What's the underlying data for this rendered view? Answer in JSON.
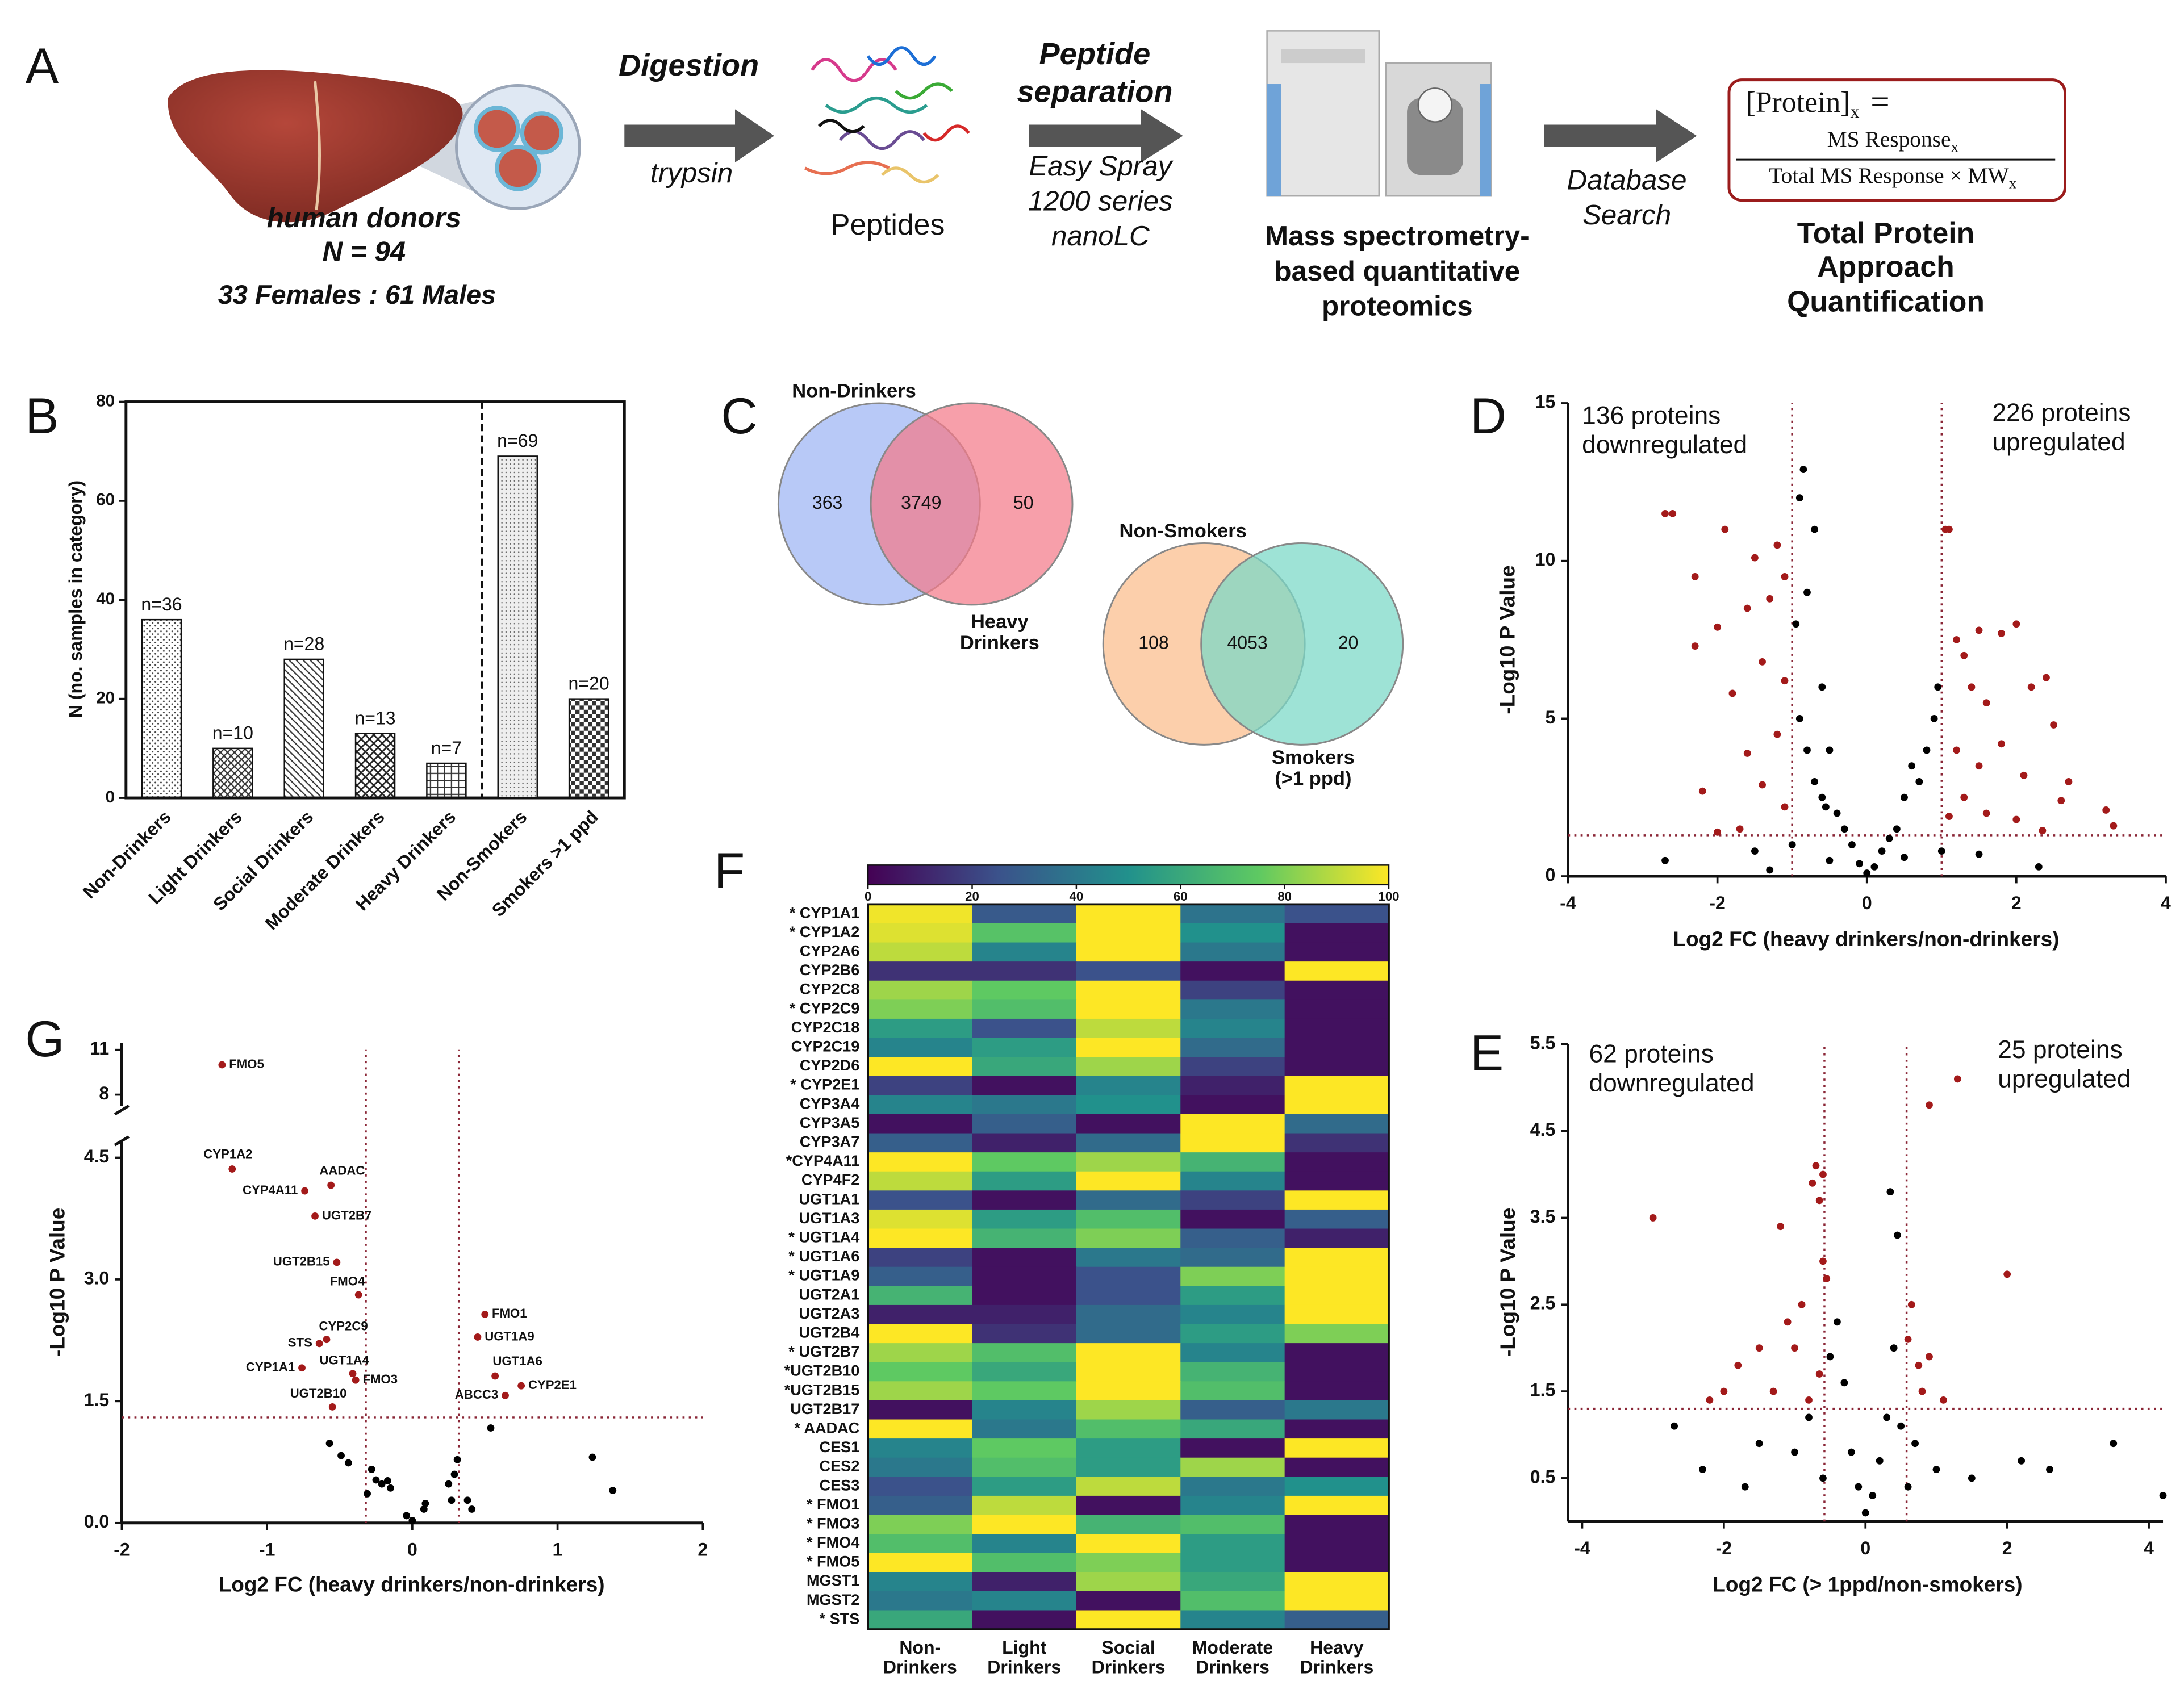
{
  "workflow": {
    "label": "A",
    "donors": [
      "human donors",
      "N = 94"
    ],
    "sexes": "33 Females : 61 Males",
    "step1": {
      "title": "Digestion",
      "note": "trypsin"
    },
    "product": "Peptides",
    "step2": {
      "title": [
        "Peptide",
        "separation"
      ],
      "note": [
        "Easy Spray",
        "1200 series",
        "nanoLC"
      ]
    },
    "instrument": [
      "Mass spectrometry-",
      "based quantitative",
      "proteomics"
    ],
    "step3": [
      "Database",
      "Search"
    ],
    "formula": {
      "lhs": "[Protein]",
      "lhs_sub": "x",
      "equals": "=",
      "numerator": "MS Response",
      "numerator_sub": "x",
      "denominator": "Total MS Response × MW",
      "denominator_sub": "x"
    },
    "result": [
      "Total Protein",
      "Approach",
      "Quantification"
    ]
  },
  "chart_data": [
    {
      "type": "bar",
      "label": "B",
      "y_label": "N (no. samples in category)",
      "categories": [
        "Non-Drinkers",
        "Light Drinkers",
        "Social Drinkers",
        "Moderate Drinkers",
        "Heavy Drinkers",
        "Non-Smokers",
        "Smokers >1 ppd"
      ],
      "values": [
        36,
        10,
        28,
        13,
        7,
        69,
        20
      ],
      "value_labels": [
        "n=36",
        "n=10",
        "n=28",
        "n=13",
        "n=7",
        "n=69",
        "n=20"
      ],
      "ylim": [
        0,
        80
      ],
      "yticks": [
        0,
        20,
        40,
        60,
        80
      ]
    },
    {
      "type": "venn",
      "label": "C",
      "diagrams": [
        {
          "sets": [
            {
              "name": [
                "Non-Drinkers"
              ],
              "color": "#9db4f4"
            },
            {
              "name": [
                "Heavy",
                "Drinkers"
              ],
              "color": "#f47a89"
            }
          ],
          "values": [
            363,
            3749,
            50
          ]
        },
        {
          "sets": [
            {
              "name": [
                "Non-Smokers"
              ],
              "color": "#fbbd8a"
            },
            {
              "name": [
                "Smokers",
                "(>1 ppd)"
              ],
              "color": "#78d8c6"
            }
          ],
          "values": [
            108,
            4053,
            20
          ]
        }
      ]
    },
    {
      "type": "scatter",
      "label": "D",
      "x_label": "Log2 FC (heavy drinkers/non-drinkers)",
      "y_label": "-Log10 P Value",
      "xlim": [
        -4,
        4
      ],
      "ylim": [
        0,
        15
      ],
      "xticks": [
        -4,
        -2,
        0,
        2,
        4
      ],
      "yticks": [
        0,
        5,
        10,
        15
      ],
      "vlines": [
        -1,
        1
      ],
      "hlines": [
        1.3
      ],
      "line_color": "#8a2636",
      "annotations": [
        [
          "136 proteins",
          "downregulated"
        ],
        [
          "226 proteins",
          "upregulated"
        ]
      ],
      "series": [
        {
          "color": "#000000",
          "x": [
            -0.85,
            -0.9,
            -0.7,
            -0.8,
            -0.95,
            -0.6,
            -0.9,
            -0.5,
            -0.7,
            -0.4,
            -0.2,
            -0.1,
            0,
            0.1,
            0.2,
            0.4,
            0.5,
            0.7,
            0.8,
            0.9,
            0.95,
            0.6,
            0.3,
            -0.3,
            -0.6,
            -0.8,
            -0.5,
            0.5,
            -1.0,
            1.0,
            -1.5,
            1.5,
            -2.7,
            2.3,
            -0.55,
            -1.3
          ],
          "values": [
            12.9,
            12,
            11,
            9,
            8,
            6,
            5,
            4,
            3,
            2,
            1,
            0.4,
            0.1,
            0.3,
            0.8,
            1.5,
            2.5,
            3,
            4,
            5,
            6,
            3.5,
            1.2,
            1.5,
            2.5,
            4,
            0.5,
            0.6,
            1.0,
            0.8,
            0.8,
            0.7,
            0.5,
            0.3,
            2.2,
            0.2
          ]
        },
        {
          "color": "#a31a1a",
          "x": [
            -2.7,
            -2.6,
            -1.9,
            -1.5,
            -1.2,
            -1.1,
            -2.3,
            -1.6,
            -1.3,
            -2.0,
            -2.3,
            -1.4,
            -1.1,
            -1.8,
            -1.2,
            -1.6,
            -2.2,
            -1.4,
            -1.1,
            -1.7,
            -2.0,
            1.05,
            1.1,
            1.2,
            1.3,
            1.5,
            1.8,
            2.0,
            1.4,
            1.6,
            2.2,
            2.4,
            2.5,
            1.2,
            1.5,
            1.8,
            2.1,
            2.7,
            1.3,
            1.6,
            2.0,
            2.6,
            3.2,
            3.3,
            2.35,
            1.1
          ],
          "values": [
            11.5,
            11.5,
            11,
            10.1,
            10.5,
            9.5,
            9.5,
            8.5,
            8.8,
            7.9,
            7.3,
            6.8,
            6.2,
            5.8,
            4.5,
            3.9,
            2.7,
            2.9,
            2.2,
            1.5,
            1.4,
            11,
            11,
            7.5,
            7,
            7.8,
            7.7,
            8,
            6,
            5.5,
            6,
            6.3,
            4.8,
            4,
            3.5,
            4.2,
            3.2,
            3,
            2.5,
            2,
            1.8,
            2.4,
            2.1,
            1.6,
            1.45,
            1.9
          ]
        }
      ]
    },
    {
      "type": "scatter",
      "label": "E",
      "x_label": "Log2 FC (> 1ppd/non-smokers)",
      "y_label": "-Log10 P Value",
      "xlim": [
        -4.2,
        4.2
      ],
      "ylim": [
        0,
        5.5
      ],
      "xticks": [
        -4,
        -2,
        0,
        2,
        4
      ],
      "yticks": [
        0.5,
        1.5,
        2.5,
        3.5,
        4.5,
        5.5
      ],
      "vlines": [
        -0.58,
        0.58
      ],
      "hlines": [
        1.3
      ],
      "line_color": "#8a2636",
      "annotations": [
        [
          "62 proteins",
          "downregulated"
        ],
        [
          "25 proteins",
          "upregulated"
        ]
      ],
      "series": [
        {
          "color": "#000000",
          "x": [
            -2.7,
            -2.3,
            -1.5,
            -1.0,
            -0.8,
            -0.5,
            -0.4,
            -0.3,
            -0.2,
            -0.1,
            0,
            0.1,
            0.2,
            0.3,
            0.4,
            0.45,
            0.35,
            0.5,
            0.7,
            1.0,
            1.5,
            2.2,
            2.6,
            3.5,
            4.2,
            -0.6,
            0.6,
            -1.7
          ],
          "values": [
            1.1,
            0.6,
            0.9,
            0.8,
            1.2,
            1.9,
            2.3,
            1.6,
            0.8,
            0.4,
            0.1,
            0.3,
            0.7,
            1.2,
            2.0,
            3.3,
            3.8,
            1.1,
            0.9,
            0.6,
            0.5,
            0.7,
            0.6,
            0.9,
            0.3,
            0.5,
            0.4,
            0.4
          ]
        },
        {
          "color": "#a31a1a",
          "x": [
            -0.7,
            -0.6,
            -0.75,
            -0.65,
            -1.2,
            -0.6,
            -0.55,
            -0.9,
            -1.1,
            -1.5,
            -1.8,
            -2.0,
            -1.3,
            -0.8,
            -2.2,
            -1.0,
            -0.65,
            -3.0,
            1.3,
            0.9,
            2.0,
            0.65,
            0.75,
            1.1,
            0.8,
            0.6,
            0.9
          ],
          "values": [
            4.1,
            4.0,
            3.9,
            3.7,
            3.4,
            3.0,
            2.8,
            2.5,
            2.3,
            2.0,
            1.8,
            1.5,
            1.5,
            1.4,
            1.4,
            2.0,
            1.7,
            3.5,
            5.1,
            4.8,
            2.85,
            2.5,
            1.8,
            1.4,
            1.5,
            2.1,
            1.9
          ]
        }
      ]
    },
    {
      "type": "heatmap",
      "label": "F",
      "colormap": "viridis",
      "clim": [
        0,
        100
      ],
      "cbar_ticks": [
        0,
        20,
        40,
        60,
        80,
        100
      ],
      "columns": [
        [
          "Non-",
          "Drinkers"
        ],
        [
          "Light",
          "Drinkers"
        ],
        [
          "Social",
          "Drinkers"
        ],
        [
          "Moderate",
          "Drinkers"
        ],
        [
          "Heavy",
          "Drinkers"
        ]
      ],
      "rows": [
        "* CYP1A1",
        "* CYP1A2",
        "CYP2A6",
        "CYP2B6",
        "CYP2C8",
        "* CYP2C9",
        "CYP2C18",
        "CYP2C19",
        "CYP2D6",
        "* CYP2E1",
        "CYP3A4",
        "CYP3A5",
        "CYP3A7",
        "*CYP4A11",
        "CYP4F2",
        "UGT1A1",
        "UGT1A3",
        "* UGT1A4",
        "* UGT1A6",
        "* UGT1A9",
        "UGT2A1",
        "UGT2A3",
        "UGT2B4",
        "* UGT2B7",
        "*UGT2B10",
        "*UGT2B15",
        "UGT2B17",
        "* AADAC",
        "CES1",
        "CES2",
        "CES3",
        "*  FMO1",
        "*  FMO3",
        "*  FMO4",
        "*  FMO5",
        "MGST1",
        "MGST2",
        "*  STS"
      ],
      "values": [
        [
          98,
          28,
          100,
          38,
          25
        ],
        [
          95,
          72,
          100,
          50,
          5
        ],
        [
          90,
          45,
          100,
          40,
          5
        ],
        [
          15,
          15,
          25,
          5,
          100
        ],
        [
          85,
          75,
          100,
          20,
          5
        ],
        [
          80,
          70,
          100,
          40,
          5
        ],
        [
          55,
          25,
          90,
          45,
          5
        ],
        [
          45,
          55,
          100,
          35,
          5
        ],
        [
          100,
          60,
          85,
          20,
          5
        ],
        [
          20,
          5,
          45,
          10,
          100
        ],
        [
          45,
          40,
          50,
          5,
          100
        ],
        [
          5,
          30,
          5,
          100,
          35
        ],
        [
          30,
          10,
          35,
          100,
          15
        ],
        [
          100,
          75,
          85,
          65,
          5
        ],
        [
          90,
          55,
          100,
          45,
          5
        ],
        [
          25,
          5,
          35,
          20,
          100
        ],
        [
          95,
          55,
          70,
          5,
          30
        ],
        [
          100,
          65,
          80,
          30,
          10
        ],
        [
          20,
          5,
          40,
          35,
          100
        ],
        [
          30,
          5,
          25,
          80,
          100
        ],
        [
          65,
          5,
          25,
          55,
          100
        ],
        [
          10,
          10,
          35,
          45,
          100
        ],
        [
          100,
          15,
          35,
          55,
          80
        ],
        [
          85,
          70,
          100,
          45,
          5
        ],
        [
          75,
          60,
          100,
          65,
          5
        ],
        [
          85,
          75,
          100,
          70,
          5
        ],
        [
          5,
          45,
          85,
          30,
          40
        ],
        [
          100,
          40,
          70,
          60,
          5
        ],
        [
          45,
          75,
          55,
          5,
          100
        ],
        [
          40,
          70,
          55,
          85,
          5
        ],
        [
          25,
          55,
          90,
          40,
          50
        ],
        [
          30,
          90,
          5,
          45,
          100
        ],
        [
          80,
          100,
          65,
          70,
          5
        ],
        [
          70,
          45,
          100,
          55,
          5
        ],
        [
          100,
          70,
          80,
          55,
          5
        ],
        [
          45,
          10,
          85,
          60,
          100
        ],
        [
          40,
          45,
          5,
          70,
          100
        ],
        [
          60,
          5,
          100,
          45,
          30
        ]
      ]
    },
    {
      "type": "scatter",
      "label": "G",
      "x_label": "Log2 FC (heavy drinkers/non-drinkers)",
      "y_label": "-Log10 P Value",
      "xlim": [
        -2,
        2
      ],
      "ylim": [
        0,
        11
      ],
      "ybreak": [
        4.5,
        8
      ],
      "xticks": [
        -2,
        -1,
        0,
        1,
        2
      ],
      "yticks": [
        {
          "value": 0,
          "label": "0.0"
        },
        1.5,
        {
          "value": 3,
          "label": "3.0"
        },
        4.5,
        8,
        11
      ],
      "vlines": [
        -0.32,
        0.32
      ],
      "hlines": [
        1.3
      ],
      "line_color": "#8a2636",
      "series": [
        {
          "color": "#000000",
          "x": [
            -0.57,
            -0.49,
            -0.44,
            -0.28,
            -0.25,
            -0.21,
            -0.17,
            -0.31,
            -0.15,
            -0.04,
            0,
            0.09,
            0.08,
            0.25,
            0.29,
            0.31,
            0.27,
            0.38,
            0.41,
            0.54,
            1.24,
            1.38
          ],
          "values": [
            0.98,
            0.83,
            0.74,
            0.66,
            0.53,
            0.48,
            0.52,
            0.36,
            0.43,
            0.09,
            0.03,
            0.24,
            0.17,
            0.48,
            0.6,
            0.78,
            0.28,
            0.28,
            0.17,
            1.17,
            0.81,
            0.4
          ]
        },
        {
          "color": "#a31a1a",
          "x": [
            -1.31,
            -1.24,
            -0.56,
            -0.74,
            -0.67,
            -0.52,
            -0.37,
            -0.59,
            -0.64,
            -0.41,
            -0.76,
            -0.39,
            -0.55,
            0.5,
            0.45,
            0.57,
            0.75,
            0.64
          ],
          "values": [
            10,
            4.36,
            4.16,
            4.09,
            3.78,
            3.21,
            2.81,
            2.26,
            2.21,
            1.84,
            1.91,
            1.76,
            1.43,
            2.57,
            2.29,
            1.81,
            1.69,
            1.57
          ],
          "labels": [
            "FMO5",
            "CYP1A2",
            "AADAC",
            "CYP4A11",
            "UGT2B7",
            "UGT2B15",
            "FMO4",
            "CYP2C9",
            "STS",
            "UGT1A4",
            "CYP1A1",
            "FMO3",
            "UGT2B10",
            "FMO1",
            "UGT1A9",
            "UGT1A6",
            "CYP2E1",
            "ABCC3"
          ]
        }
      ]
    }
  ]
}
